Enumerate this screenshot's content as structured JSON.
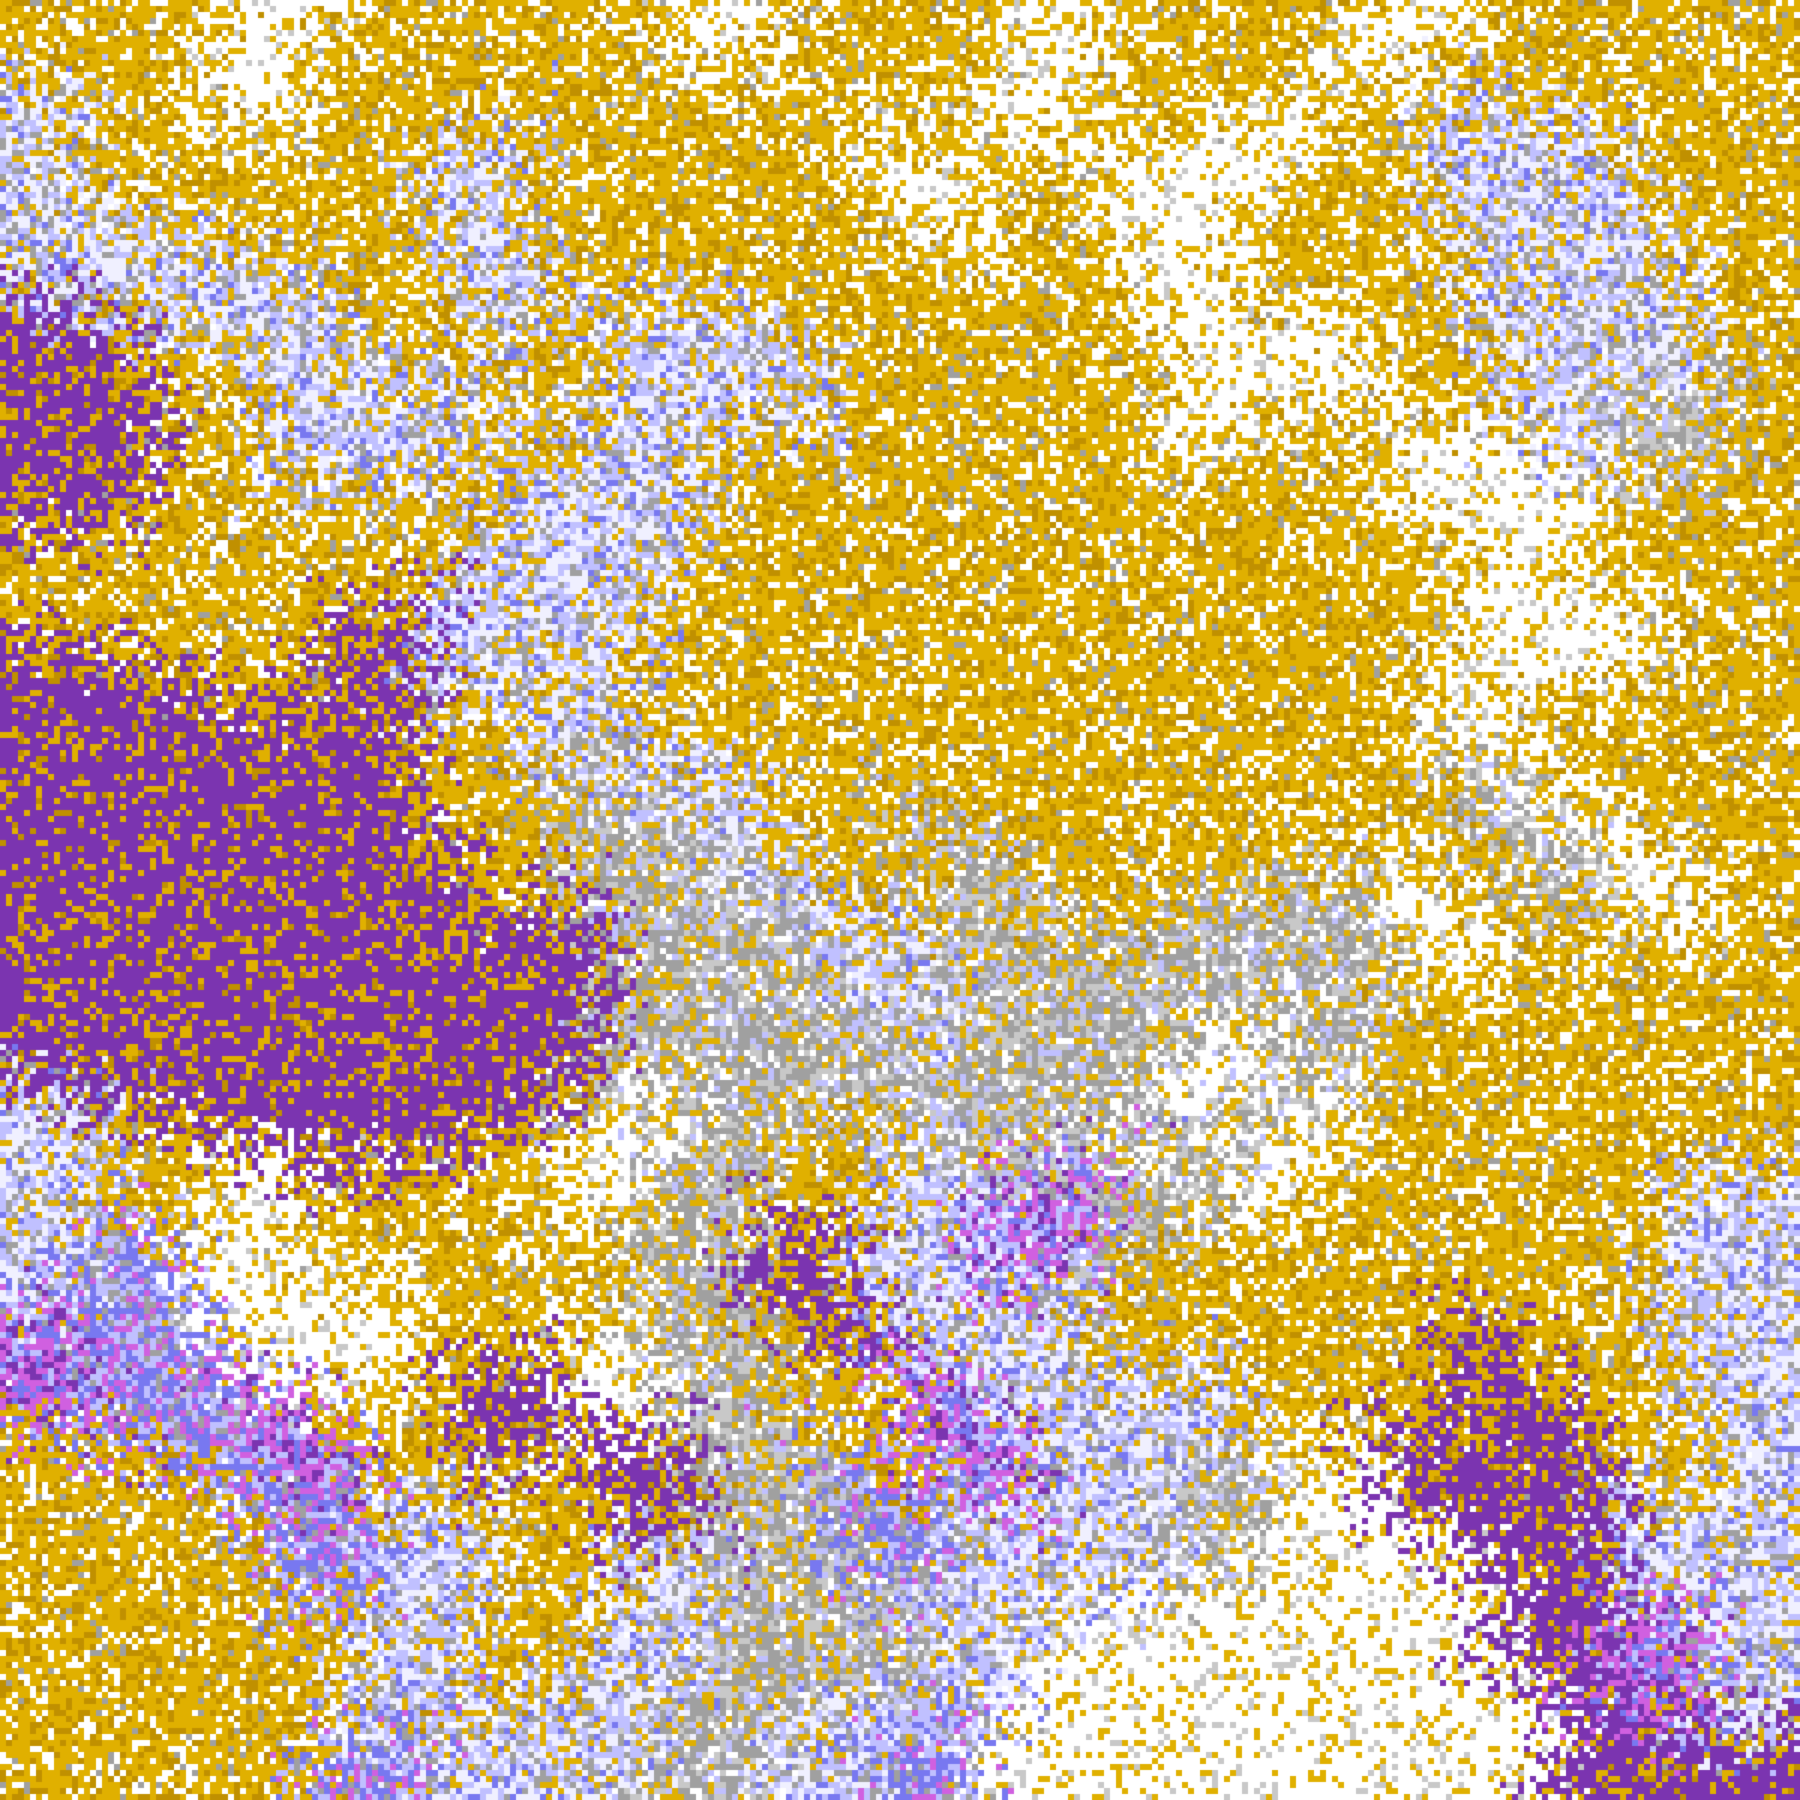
{
  "image": {
    "kind": "classified satellite cloud imagery",
    "palette": {
      "clear": "#ffffff",
      "gold": "#e0b000",
      "dark_gold": "#c09000",
      "purple": "#7b34b0",
      "magenta": "#d060e0",
      "blue": "#7878f0",
      "light_blue": "#c0c0ff",
      "lavender": "#f0f0ff",
      "gray": "#a0a0a0",
      "light_gray": "#c8c8c8"
    }
  }
}
